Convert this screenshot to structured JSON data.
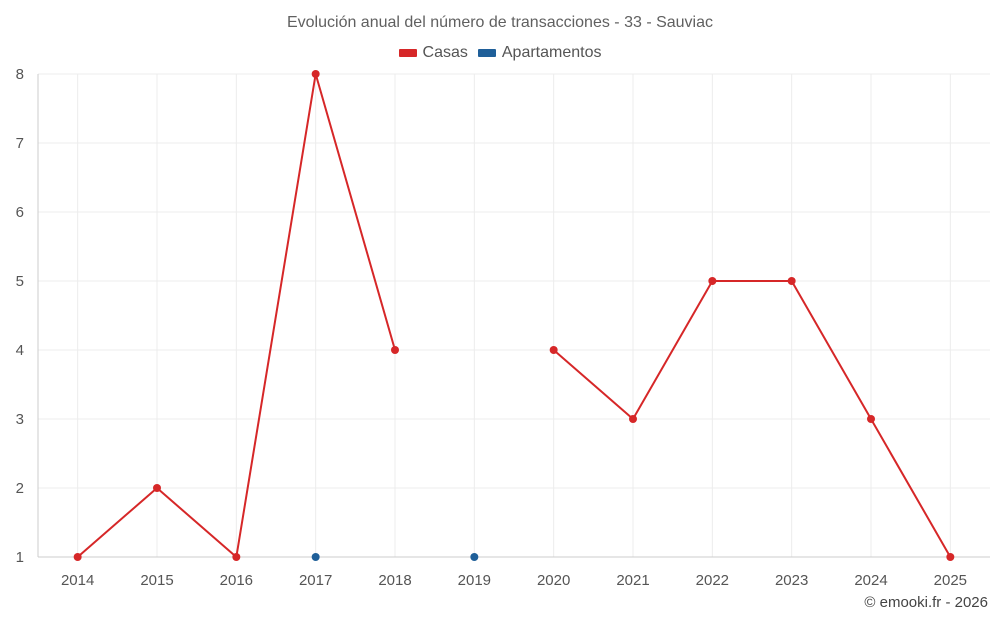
{
  "chart_data": {
    "type": "line",
    "title": "Evolución anual del número de transacciones - 33 - Sauviac",
    "xlabel": "",
    "ylabel": "",
    "x": [
      "2014",
      "2015",
      "2016",
      "2017",
      "2018",
      "2019",
      "2020",
      "2021",
      "2022",
      "2023",
      "2024",
      "2025"
    ],
    "ylim": [
      1,
      8
    ],
    "yticks": [
      1,
      2,
      3,
      4,
      5,
      6,
      7,
      8
    ],
    "grid": true,
    "legend_position": "top-center",
    "series": [
      {
        "name": "Casas",
        "color": "#d62728",
        "values": [
          1,
          2,
          1,
          8,
          4,
          null,
          4,
          3,
          5,
          5,
          3,
          1
        ]
      },
      {
        "name": "Apartamentos",
        "color": "#1f5f99",
        "values": [
          null,
          null,
          null,
          1,
          null,
          1,
          null,
          null,
          null,
          null,
          null,
          null
        ]
      }
    ]
  },
  "credit": "© emooki.fr - 2026"
}
